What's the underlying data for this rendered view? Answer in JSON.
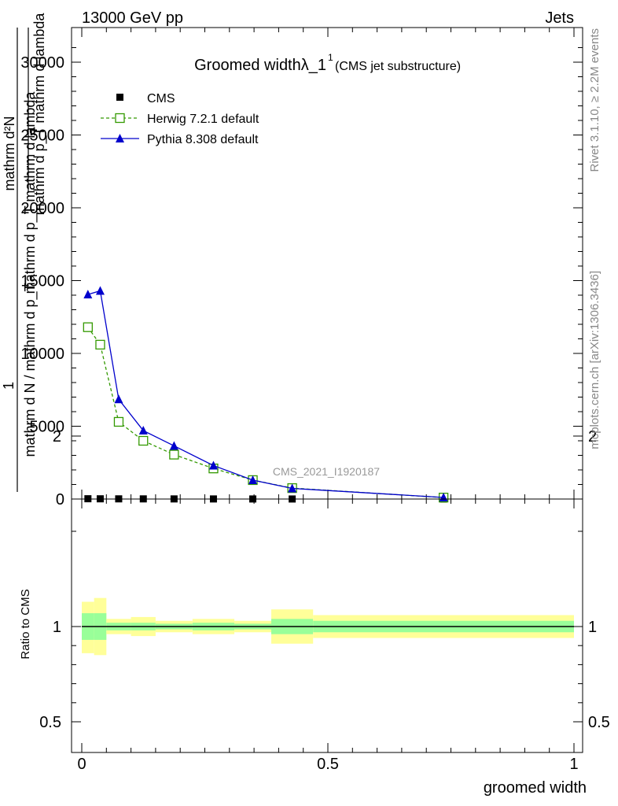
{
  "header": {
    "left": "13000 GeV pp",
    "right": "Jets"
  },
  "side_labels": {
    "rivet": "Rivet 3.1.10, ≥ 2.2M events",
    "mcplots": "mcplots.cern.ch [arXiv:1306.3436]"
  },
  "watermark": "CMS_2021_I1920187",
  "chart_data": [
    {
      "type": "line",
      "title_main": "Groomed widthλ_1",
      "title_sup": "1",
      "title_sub": "(CMS jet substructure)",
      "ylabel_numerator": "mathrm d²N",
      "ylabel_numerator_sub": "mathrm d p_T mathrm d lambda",
      "ylabel_denominator": "mathrm d N / mathrm d p_T",
      "ylabel_denominator_sub": "mathrm d p_T mathrm d lambda",
      "ylabel_lead": "1",
      "xlim": [
        0,
        1
      ],
      "ylim": [
        0,
        32000
      ],
      "yticks": [
        {
          "value": 0,
          "label": "0"
        },
        {
          "value": 5000,
          "label": "5000"
        },
        {
          "value": 10000,
          "label": "10000"
        },
        {
          "value": 15000,
          "label": "15000"
        },
        {
          "value": 20000,
          "label": "20000"
        },
        {
          "value": 25000,
          "label": "25000"
        },
        {
          "value": 30000,
          "label": "30000"
        }
      ],
      "legend_position": "top-left",
      "series": [
        {
          "name": "CMS",
          "color": "#000000",
          "marker": "square-filled",
          "x": [
            0.0125,
            0.0375,
            0.075,
            0.125,
            0.1875,
            0.2675,
            0.3475,
            0.4275,
            0.735
          ],
          "y": [
            20,
            15,
            12,
            10,
            8,
            6,
            4,
            3,
            1
          ]
        },
        {
          "name": "Herwig 7.2.1 default",
          "color": "#339900",
          "marker": "square-open",
          "dashed": true,
          "x": [
            0.0125,
            0.0375,
            0.075,
            0.125,
            0.1875,
            0.2675,
            0.3475,
            0.4275,
            0.735
          ],
          "y": [
            11800,
            10600,
            5300,
            4000,
            3050,
            2100,
            1300,
            750,
            100
          ]
        },
        {
          "name": "Pythia 8.308 default",
          "color": "#0000cc",
          "marker": "triangle-filled",
          "dashed": false,
          "x": [
            0.0125,
            0.0375,
            0.075,
            0.125,
            0.1875,
            0.2675,
            0.3475,
            0.4275,
            0.735
          ],
          "y": [
            14050,
            14300,
            6850,
            4700,
            3650,
            2300,
            1300,
            730,
            110
          ]
        }
      ]
    },
    {
      "type": "area",
      "ylabel": "Ratio to CMS",
      "xlabel": "groomed width",
      "xlim": [
        0,
        1
      ],
      "ylim": [
        0.25,
        2.25
      ],
      "xticks": [
        {
          "value": 0,
          "label": "0"
        },
        {
          "value": 0.5,
          "label": "0.5"
        },
        {
          "value": 1,
          "label": "1"
        }
      ],
      "yticks": [
        {
          "value": 0.5,
          "label": "0.5"
        },
        {
          "value": 1,
          "label": "1"
        },
        {
          "value": 2,
          "label": "2"
        }
      ],
      "band_colors": {
        "outer": "#ffff99",
        "inner": "#99ff99"
      },
      "bins": [
        {
          "x0": 0.0,
          "x1": 0.025,
          "outer": [
            0.86,
            1.13
          ],
          "inner": [
            0.93,
            1.07
          ]
        },
        {
          "x0": 0.025,
          "x1": 0.05,
          "outer": [
            0.85,
            1.15
          ],
          "inner": [
            0.93,
            1.07
          ]
        },
        {
          "x0": 0.05,
          "x1": 0.1,
          "outer": [
            0.96,
            1.04
          ],
          "inner": [
            0.98,
            1.02
          ]
        },
        {
          "x0": 0.1,
          "x1": 0.15,
          "outer": [
            0.95,
            1.05
          ],
          "inner": [
            0.98,
            1.02
          ]
        },
        {
          "x0": 0.15,
          "x1": 0.225,
          "outer": [
            0.97,
            1.03
          ],
          "inner": [
            0.985,
            1.015
          ]
        },
        {
          "x0": 0.225,
          "x1": 0.31,
          "outer": [
            0.96,
            1.04
          ],
          "inner": [
            0.98,
            1.02
          ]
        },
        {
          "x0": 0.31,
          "x1": 0.385,
          "outer": [
            0.97,
            1.03
          ],
          "inner": [
            0.985,
            1.015
          ]
        },
        {
          "x0": 0.385,
          "x1": 0.47,
          "outer": [
            0.91,
            1.09
          ],
          "inner": [
            0.96,
            1.04
          ]
        },
        {
          "x0": 0.47,
          "x1": 1.0,
          "outer": [
            0.94,
            1.06
          ],
          "inner": [
            0.97,
            1.03
          ]
        }
      ],
      "reference_line": 1
    }
  ]
}
